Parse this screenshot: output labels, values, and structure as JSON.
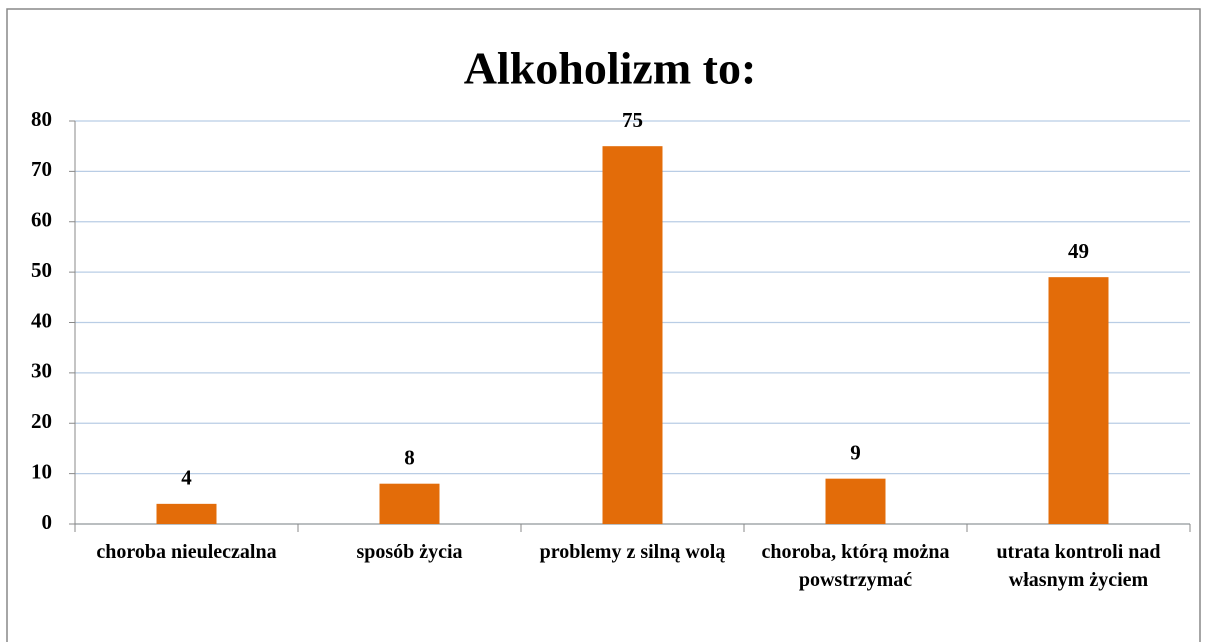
{
  "chart_data": {
    "type": "bar",
    "title": "Alkoholizm to:",
    "categories": [
      "choroba nieuleczalna",
      "sposób życia",
      "problemy z silną wolą",
      "choroba, którą można powstrzymać",
      "utrata kontroli nad własnym życiem"
    ],
    "values": [
      4,
      8,
      75,
      9,
      49
    ],
    "color": "#e36c09",
    "ylim": [
      0,
      80
    ],
    "yticks": [
      0,
      10,
      20,
      30,
      40,
      50,
      60,
      70,
      80
    ],
    "grid": true
  }
}
